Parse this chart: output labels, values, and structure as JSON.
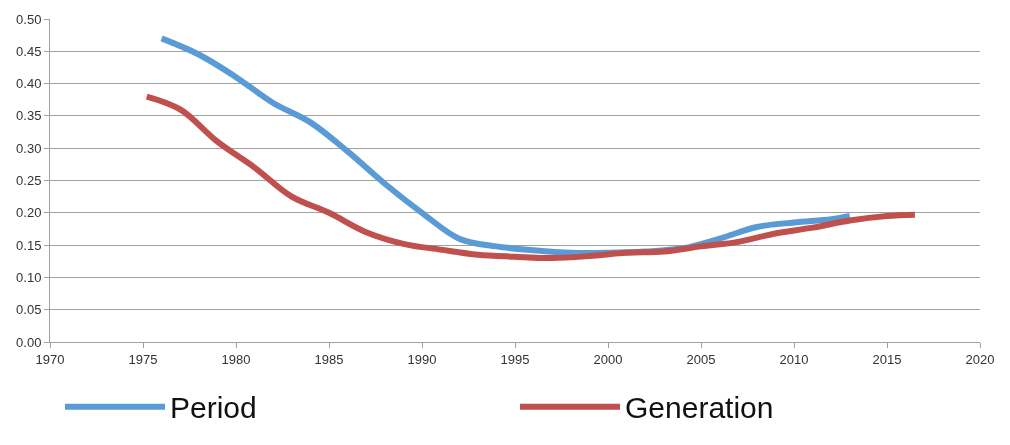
{
  "chart_data": {
    "type": "line",
    "xlim": [
      1970,
      2020
    ],
    "xticks": [
      1970,
      1975,
      1980,
      1985,
      1990,
      1995,
      2000,
      2005,
      2010,
      2015,
      2020
    ],
    "ylim": [
      0,
      0.5
    ],
    "yticks": [
      {
        "value": 0,
        "label": "0.00"
      },
      {
        "value": 0.05,
        "label": "0.05"
      },
      {
        "value": 0.1,
        "label": "0.10"
      },
      {
        "value": 0.15,
        "label": "0.15"
      },
      {
        "value": 0.2,
        "label": "0.20"
      },
      {
        "value": 0.25,
        "label": "0.25"
      },
      {
        "value": 0.3,
        "label": "0.30"
      },
      {
        "value": 0.35,
        "label": "0.35"
      },
      {
        "value": 0.4,
        "label": "0.40"
      },
      {
        "value": 0.45,
        "label": "0.45"
      },
      {
        "value": 0.5,
        "label": "0.50"
      }
    ],
    "grid": "y",
    "legend": "bottom",
    "marker": "none",
    "line_style": "solid",
    "series": [
      {
        "name": "Period",
        "color": "#5b9bd5",
        "x": [
          1976,
          1978,
          1980,
          1982,
          1984,
          1986,
          1988,
          1990,
          1992,
          1994,
          1996,
          1998,
          2000,
          2002,
          2004,
          2006,
          2008,
          2010,
          2012,
          2013
        ],
        "values": [
          0.47,
          0.445,
          0.41,
          0.37,
          0.34,
          0.295,
          0.245,
          0.2,
          0.16,
          0.148,
          0.142,
          0.138,
          0.138,
          0.14,
          0.145,
          0.16,
          0.178,
          0.185,
          0.19,
          0.195
        ]
      },
      {
        "name": "Generation",
        "color": "#c0504d",
        "x": [
          1975.2,
          1977,
          1979,
          1981,
          1983,
          1985,
          1987,
          1989,
          1991,
          1993,
          1995,
          1997,
          1999,
          2001,
          2003,
          2005,
          2007,
          2009,
          2011,
          2013,
          2015,
          2016.5
        ],
        "values": [
          0.38,
          0.36,
          0.31,
          0.27,
          0.225,
          0.2,
          0.17,
          0.152,
          0.143,
          0.135,
          0.132,
          0.13,
          0.133,
          0.138,
          0.14,
          0.148,
          0.155,
          0.168,
          0.177,
          0.188,
          0.195,
          0.197
        ]
      }
    ]
  }
}
